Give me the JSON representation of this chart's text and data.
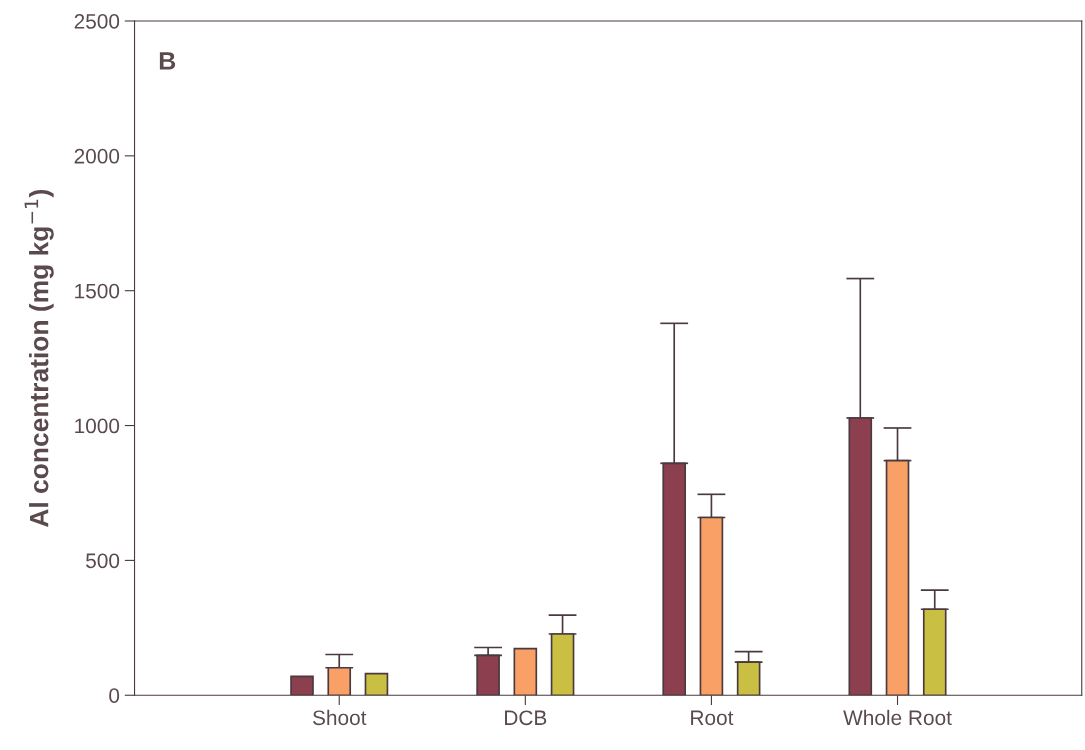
{
  "chart_data": {
    "type": "bar",
    "categories": [
      "Shoot",
      "DCB",
      "Root",
      "Whole Root"
    ],
    "ylabel": "Al concentration (mg kg$^{−1}$)",
    "annotations": [
      "B"
    ],
    "series": [
      {
        "color": "#8b3f4f",
        "values": [
          70,
          148,
          860,
          1028
        ],
        "errors": [
          null,
          [
            148,
            177
          ],
          [
            860,
            1379
          ],
          [
            1028,
            1545
          ]
        ]
      },
      {
        "color": "#f9a066",
        "values": [
          102,
          173,
          659,
          870
        ],
        "errors": [
          [
            102,
            151
          ],
          null,
          [
            659,
            745
          ],
          [
            870,
            991
          ]
        ]
      },
      {
        "color": "#c9c043",
        "values": [
          80,
          227,
          123,
          319
        ],
        "errors": [
          null,
          [
            227,
            297
          ],
          [
            123,
            162
          ],
          [
            319,
            390
          ]
        ]
      }
    ],
    "ylim": [
      0,
      2500
    ],
    "yticks": [
      0,
      500,
      1000,
      1500,
      2000,
      2500
    ],
    "grid": false,
    "legend": false
  }
}
